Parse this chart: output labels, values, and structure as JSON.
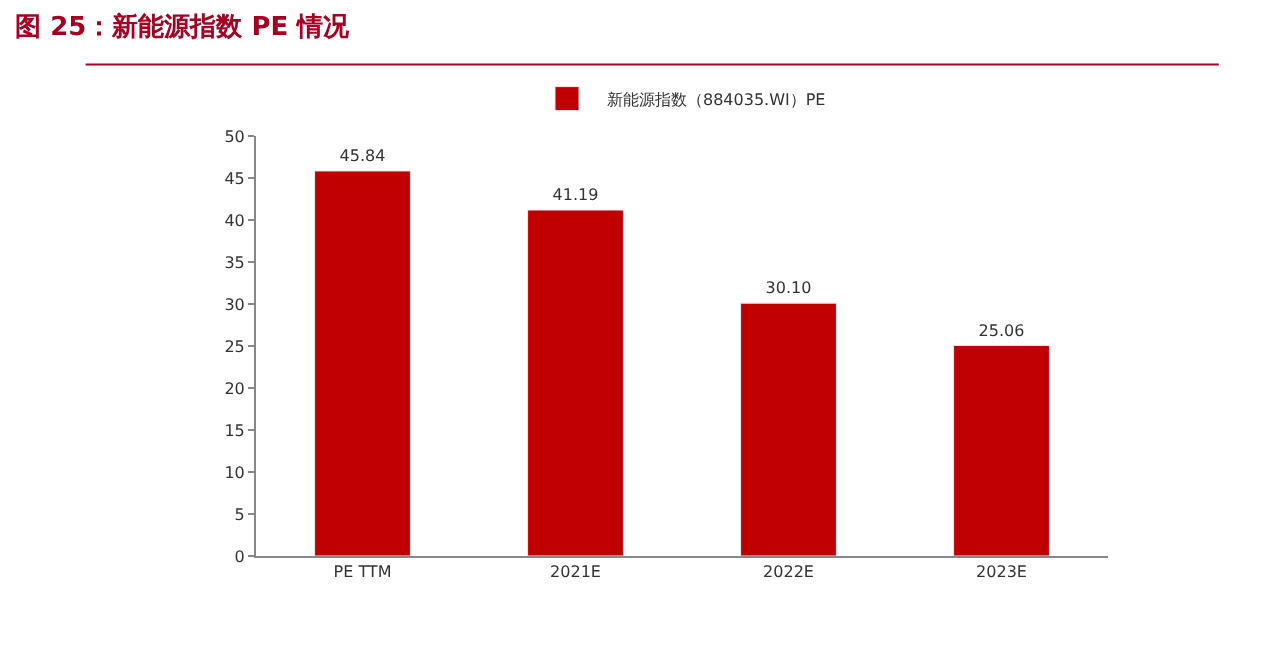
{
  "chart_data": {
    "type": "bar",
    "title": "图 25：新能源指数 PE 情况",
    "categories": [
      "PE TTM",
      "2021E",
      "2022E",
      "2023E"
    ],
    "series": [
      {
        "name": "新能源指数（884035.WI）PE",
        "color": "#c00000",
        "values": [
          45.84,
          41.19,
          30.1,
          25.06
        ]
      }
    ],
    "value_labels": [
      "45.84",
      "41.19",
      "30.10",
      "25.06"
    ],
    "ylim": [
      0,
      50
    ],
    "yticks": [
      0,
      5,
      10,
      15,
      20,
      25,
      30,
      35,
      40,
      45,
      50
    ],
    "legend": "top"
  }
}
